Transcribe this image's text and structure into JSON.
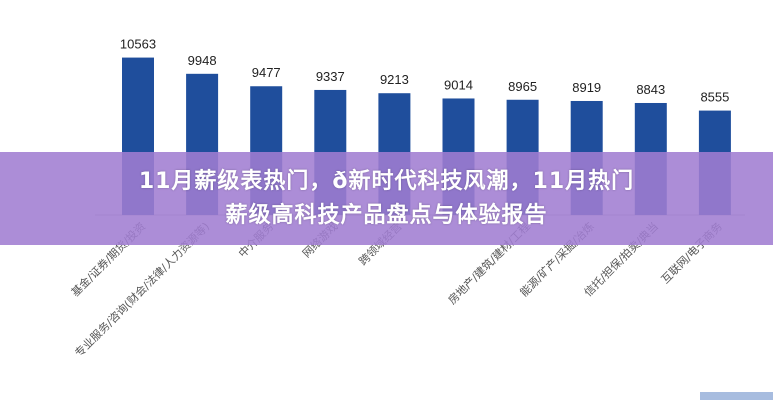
{
  "banner": {
    "line1": "11月薪级表热门，ð新时代科技风潮，11月热门",
    "line2": "薪级高科技产品盘点与体验报告"
  },
  "chart_data": {
    "type": "bar",
    "categories": [
      "基金/证券/期货/投资",
      "专业服务/咨询(财会/法律/人力资源等)",
      "中介服务",
      "网络游戏",
      "跨领域经营",
      "",
      "房地产/建筑/建材/工程",
      "能源/矿产/采掘/冶炼",
      "信托/担保/拍卖/典当",
      "互联网/电子商务"
    ],
    "values": [
      10563,
      9948,
      9477,
      9337,
      9213,
      9014,
      8965,
      8919,
      8843,
      8555
    ],
    "bar_color": "#1f4e9c",
    "grid": false,
    "title": "",
    "xlabel": "",
    "ylabel": ""
  }
}
